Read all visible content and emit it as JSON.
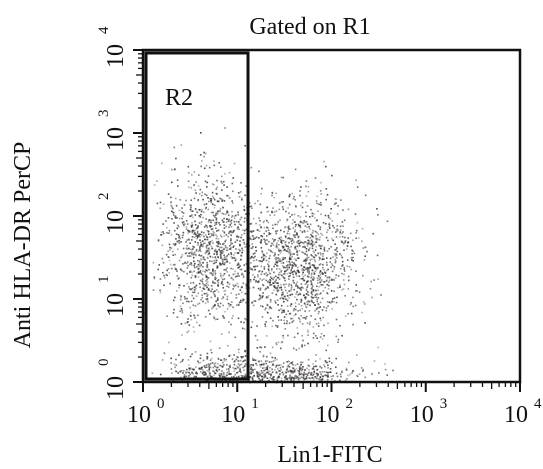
{
  "chart_data": {
    "type": "scatter",
    "title": "Gated on R1",
    "xlabel": "Lin1-FITC",
    "ylabel": "Anti HLA-DR PerCP",
    "x_scale": "log",
    "y_scale": "log",
    "xlim": [
      1,
      10000
    ],
    "ylim": [
      1,
      10000
    ],
    "x_ticks": [
      {
        "base": "10",
        "exp": "0"
      },
      {
        "base": "10",
        "exp": "1"
      },
      {
        "base": "10",
        "exp": "2"
      },
      {
        "base": "10",
        "exp": "3"
      },
      {
        "base": "10",
        "exp": "4"
      }
    ],
    "y_ticks": [
      {
        "base": "10",
        "exp": "0"
      },
      {
        "base": "10",
        "exp": "1"
      },
      {
        "base": "10",
        "exp": "2"
      },
      {
        "base": "10",
        "exp": "3"
      },
      {
        "base": "10",
        "exp": "4"
      }
    ],
    "gate": {
      "label": "R2",
      "x_range": [
        1,
        14
      ],
      "y_range": [
        1,
        10000
      ]
    },
    "grid": false,
    "legend": "none",
    "point_color": "#3a3535",
    "populations": [
      {
        "center_x": 5,
        "center_y": 40,
        "spread_log_x": 0.28,
        "spread_log_y": 0.45,
        "count": 1100
      },
      {
        "center_x": 45,
        "center_y": 25,
        "spread_log_x": 0.32,
        "spread_log_y": 0.42,
        "count": 1300
      },
      {
        "center_x": 8,
        "center_y": 1.3,
        "spread_log_x": 0.35,
        "spread_log_y": 0.12,
        "count": 500
      },
      {
        "center_x": 40,
        "center_y": 1.2,
        "spread_log_x": 0.35,
        "spread_log_y": 0.1,
        "count": 450
      }
    ]
  }
}
